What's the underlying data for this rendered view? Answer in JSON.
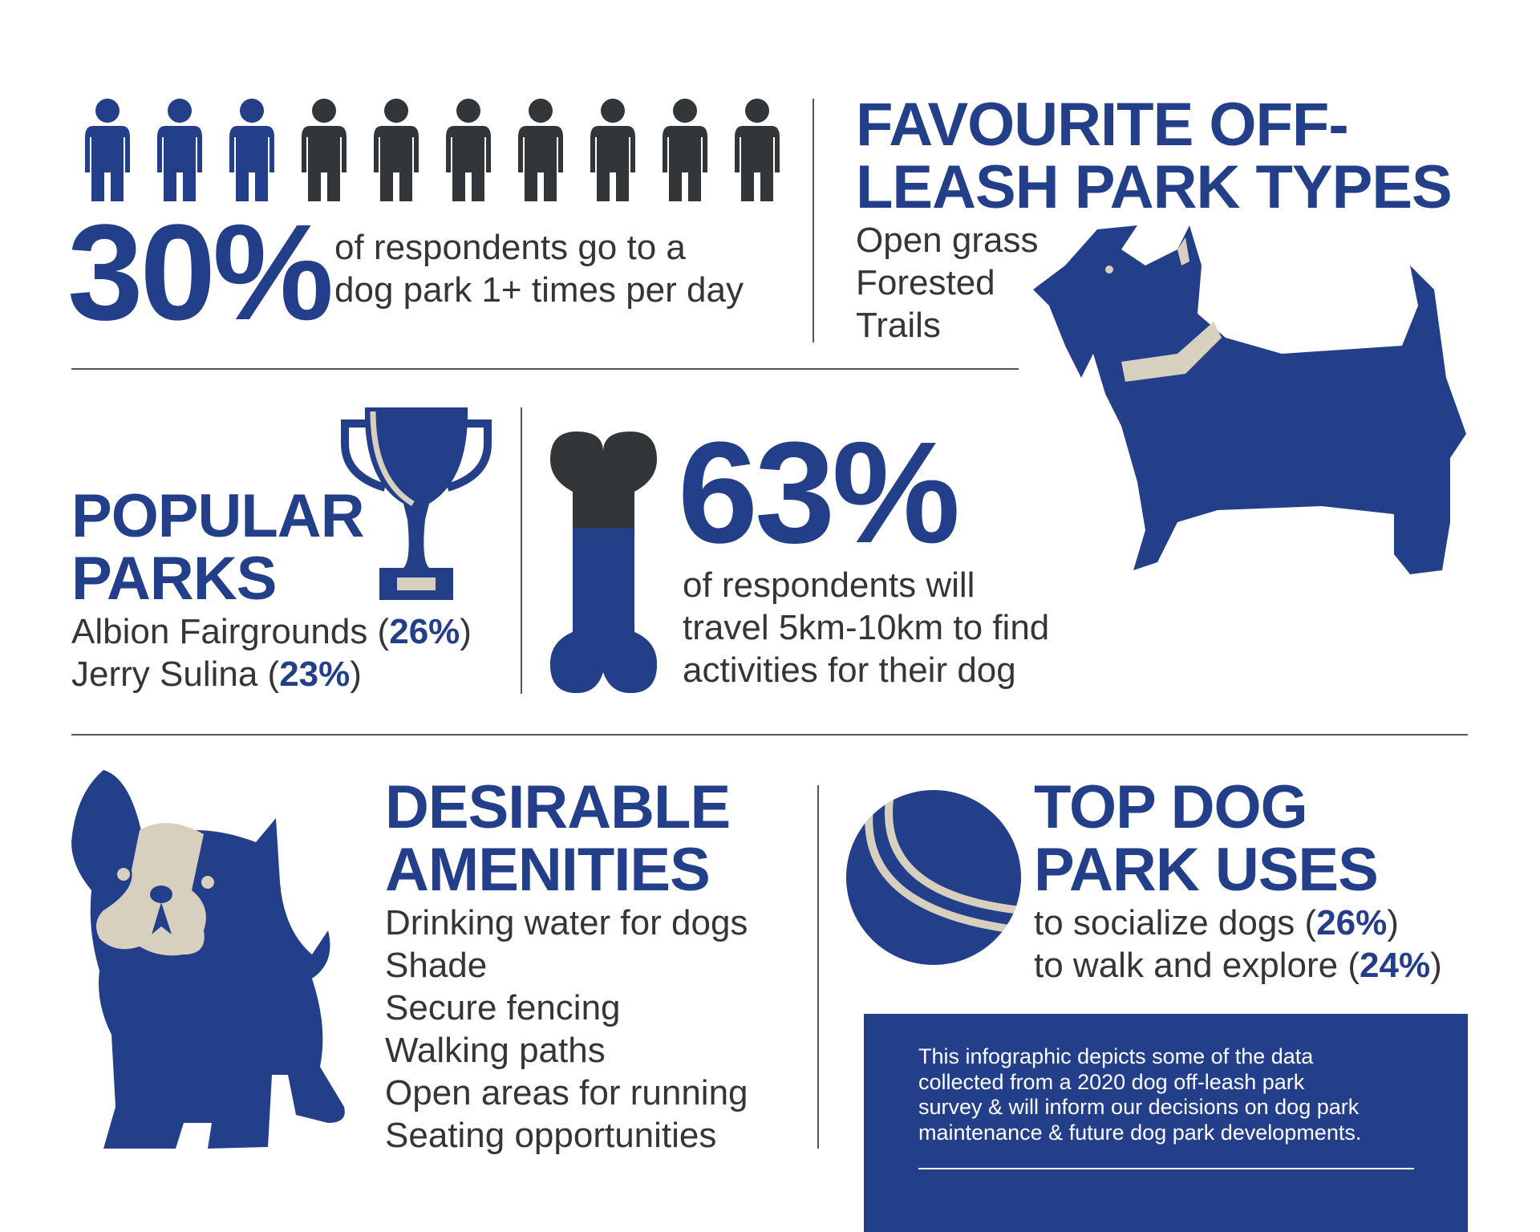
{
  "colors": {
    "primary": "#233f8a",
    "dark": "#333638",
    "beige": "#d8d0bf"
  },
  "frequency": {
    "people_total": 10,
    "people_highlighted": 3,
    "stat": "30%",
    "text_lines": [
      "of respondents go to a",
      "dog park 1+ times per day"
    ]
  },
  "park_types": {
    "title_lines": [
      "FAVOURITE OFF-",
      "LEASH PARK TYPES"
    ],
    "items": [
      "Open grass",
      "Forested",
      "Trails"
    ]
  },
  "popular_parks": {
    "title_lines": [
      "POPULAR",
      "PARKS"
    ],
    "items": [
      {
        "name": "Albion Fairgrounds",
        "pct": "26%"
      },
      {
        "name": "Jerry Sulina",
        "pct": "23%"
      }
    ]
  },
  "travel": {
    "stat": "63%",
    "fill_fraction": 0.63,
    "text_lines": [
      "of respondents will",
      "travel 5km-10km to find",
      "activities for their dog"
    ]
  },
  "amenities": {
    "title_lines": [
      "DESIRABLE",
      "AMENITIES"
    ],
    "items": [
      "Drinking water for dogs",
      "Shade",
      "Secure fencing",
      "Walking paths",
      "Open areas for running",
      "Seating opportunities"
    ]
  },
  "uses": {
    "title_lines": [
      "TOP DOG",
      "PARK USES"
    ],
    "items": [
      {
        "label": "to socialize dogs",
        "pct": "26%"
      },
      {
        "label": "to walk and explore",
        "pct": "24%"
      }
    ]
  },
  "note": {
    "lines": [
      "This infographic depicts some of the data",
      "collected from a 2020 dog off-leash park",
      "survey & will inform our decisions on dog park",
      "maintenance & future dog park developments."
    ]
  }
}
